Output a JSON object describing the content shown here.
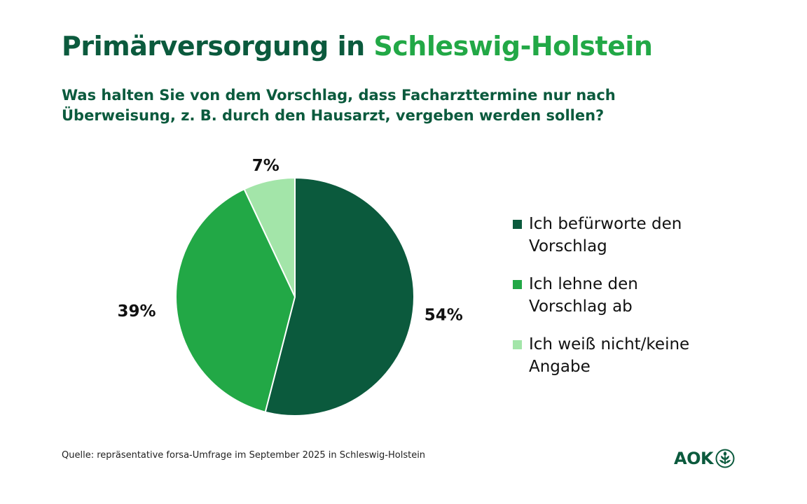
{
  "title": {
    "part1": "Primärversorgung in ",
    "part2": "Schleswig-Holstein"
  },
  "subtitle": {
    "line1": "Was halten Sie von dem Vorschlag, dass Facharzttermine nur nach",
    "line2": "Überweisung, z. B. durch den Hausarzt, vergeben werden sollen?"
  },
  "chart_data": {
    "type": "pie",
    "title": "Primärversorgung in Schleswig-Holstein",
    "categories": [
      "Ich befürworte den Vorschlag",
      "Ich lehne den Vorschlag ab",
      "Ich weiß nicht/keine Angabe"
    ],
    "values": [
      54,
      39,
      7
    ],
    "labels": [
      "54%",
      "39%",
      "7%"
    ],
    "colors": [
      "#0b5a3d",
      "#22a846",
      "#a3e5a9"
    ],
    "legend_placement": "right"
  },
  "legend": [
    {
      "line1": "Ich befürworte den",
      "line2": "Vorschlag",
      "color": "#0b5a3d"
    },
    {
      "line1": "Ich lehne den",
      "line2": "Vorschlag ab",
      "color": "#22a846"
    },
    {
      "line1": "Ich weiß nicht/keine",
      "line2": "Angabe",
      "color": "#a3e5a9"
    }
  ],
  "source": "Quelle: repräsentative forsa-Umfrage im September 2025 in Schleswig-Holstein",
  "logo": {
    "text": "AOK"
  }
}
